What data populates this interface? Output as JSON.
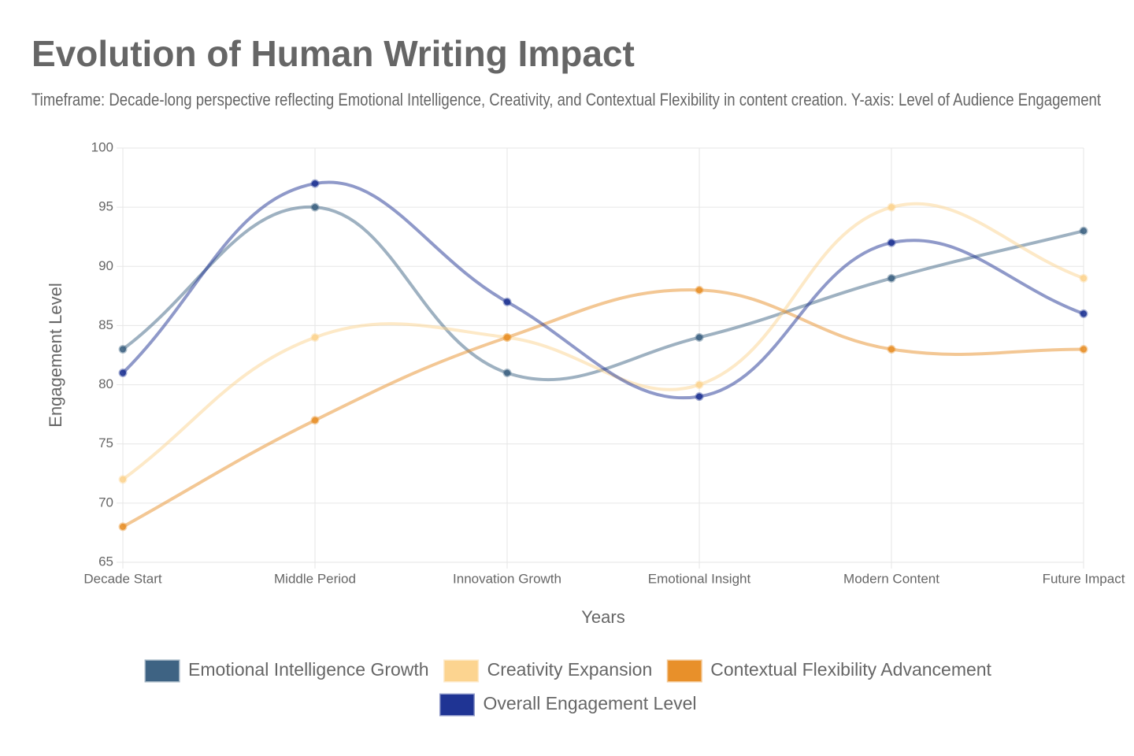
{
  "chart_data": {
    "type": "line",
    "title": "Evolution of Human Writing Impact",
    "subtitle": "Timeframe: Decade-long perspective reflecting Emotional Intelligence, Creativity, and Contextual Flexibility in content creation. Y-axis: Level of Audience Engagement",
    "x_label": "Years",
    "y_label": "Engagement Level",
    "categories": [
      "Decade Start",
      "Middle Period",
      "Innovation Growth",
      "Emotional Insight",
      "Modern Content",
      "Future Impact"
    ],
    "series": [
      {
        "name": "Emotional Intelligence Growth",
        "color": "#3e6383",
        "values": [
          83,
          95,
          81,
          84,
          89,
          93
        ]
      },
      {
        "name": "Creativity Expansion",
        "color": "#fcd490",
        "values": [
          72,
          84,
          84,
          80,
          95,
          89
        ]
      },
      {
        "name": "Contextual Flexibility Advancement",
        "color": "#e8902a",
        "values": [
          68,
          77,
          84,
          88,
          83,
          83
        ]
      },
      {
        "name": "Overall Engagement Level",
        "color": "#1f3494",
        "values": [
          81,
          97,
          87,
          79,
          92,
          86
        ]
      }
    ],
    "ylim": [
      65,
      100
    ],
    "yticks": [
      65,
      70,
      75,
      80,
      85,
      90,
      95,
      100
    ],
    "grid": true,
    "legend": "bottom"
  }
}
